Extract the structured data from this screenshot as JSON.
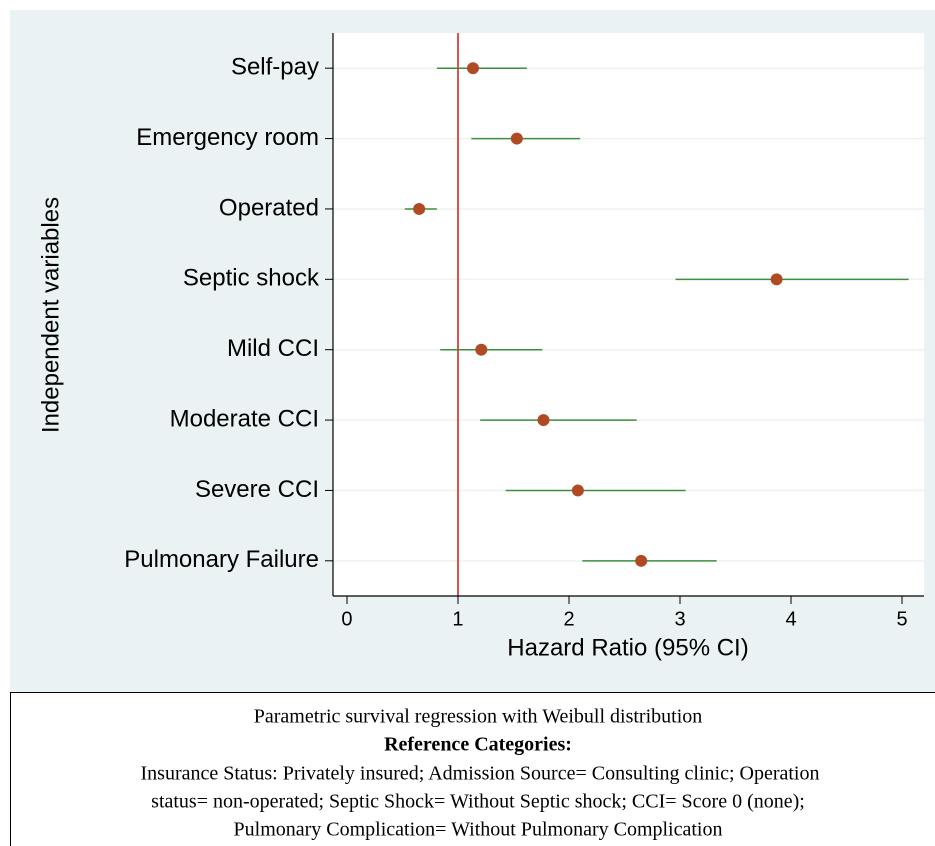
{
  "chart_data": {
    "type": "forest",
    "xlabel": "Hazard Ratio (95% CI)",
    "ylabel": "Independent variables",
    "categories": [
      "Self-pay",
      "Emergency room",
      "Operated",
      "Septic shock",
      "Mild CCI",
      "Moderate CCI",
      "Severe CCI",
      "Pulmonary Failure"
    ],
    "values": [
      1.135,
      1.53,
      0.65,
      3.87,
      1.21,
      1.77,
      2.08,
      2.65
    ],
    "lower": [
      0.81,
      1.12,
      0.52,
      2.96,
      0.84,
      1.2,
      1.43,
      2.12
    ],
    "upper": [
      1.62,
      2.1,
      0.81,
      5.06,
      1.76,
      2.61,
      3.05,
      3.33
    ],
    "point_color": "#b04a24",
    "ci_color": "#3a8f3a",
    "reference_line": 1,
    "reference_color": "#d9534f",
    "xlim": [
      -0.126,
      5.198
    ],
    "xticks": [
      0,
      1,
      2,
      3,
      4,
      5
    ],
    "grid": true
  },
  "note": {
    "title": "Parametric survival regression with Weibull distribution",
    "heading": "Reference Categories:",
    "lines": [
      "Insurance Status: Privately insured; Admission Source= Consulting clinic; Operation",
      "status= non-operated; Septic Shock= Without Septic shock; CCI= Score 0 (none);",
      "Pulmonary Complication= Without Pulmonary Complication"
    ]
  }
}
